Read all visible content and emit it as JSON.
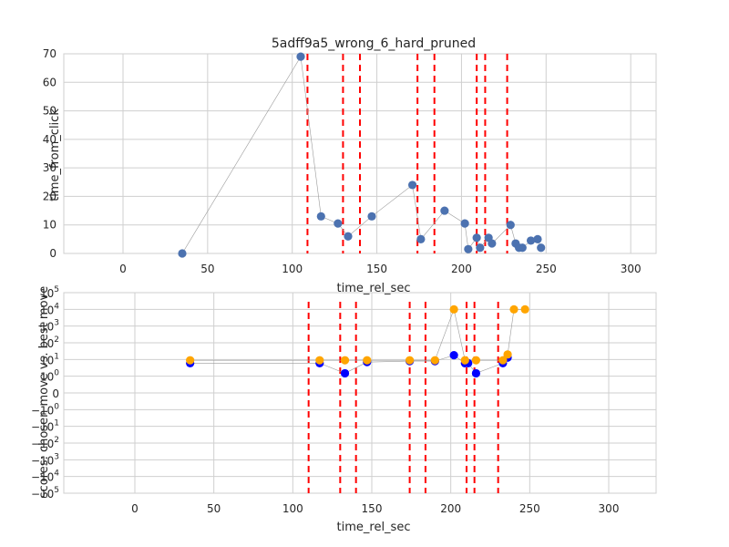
{
  "chart_data": [
    {
      "type": "scatter",
      "title": "5adff9a5_wrong_6_hard_pruned",
      "xlabel": "time_rel_sec",
      "ylabel": "time_from_click",
      "xlim": [
        -35,
        315
      ],
      "ylim": [
        0,
        70
      ],
      "xticks": [
        "0",
        "50",
        "100",
        "150",
        "200",
        "250",
        "300"
      ],
      "xtick_values": [
        0,
        50,
        100,
        150,
        200,
        250,
        300
      ],
      "yticks": [
        "0",
        "10",
        "20",
        "30",
        "40",
        "50",
        "60",
        "70"
      ],
      "ytick_values": [
        0,
        10,
        20,
        30,
        40,
        50,
        60,
        70
      ],
      "grid": true,
      "connect_points": true,
      "series": [
        {
          "color": "#4c72b0",
          "x": [
            35,
            105,
            117,
            127,
            133,
            147,
            171,
            176,
            190,
            202,
            204,
            209,
            211,
            216,
            218,
            229,
            232,
            234,
            236,
            241,
            245,
            247
          ],
          "y": [
            0,
            69,
            13,
            10.5,
            6,
            13,
            24,
            5,
            15,
            10.5,
            1.5,
            5.5,
            2,
            5.5,
            3.5,
            10,
            3.5,
            2,
            2,
            4.5,
            5,
            2
          ]
        }
      ],
      "vertical_lines": {
        "color": "#ff0000",
        "style": "dashed",
        "x": [
          109,
          130,
          140,
          174,
          184,
          209,
          214,
          227
        ]
      }
    },
    {
      "type": "scatter",
      "xlabel": "time_rel_sec",
      "ylabel": "scores: chosen move vs. best move",
      "yscale": "symlog",
      "xlim": [
        -45,
        330
      ],
      "xticks": [
        "0",
        "50",
        "100",
        "150",
        "200",
        "250",
        "300"
      ],
      "xtick_values": [
        0,
        50,
        100,
        150,
        200,
        250,
        300
      ],
      "yticks": [
        "10^5",
        "10^4",
        "10^3",
        "10^2",
        "10^1",
        "10^0",
        "0",
        "-10^0",
        "-10^1",
        "-10^2",
        "-10^3",
        "-10^4",
        "-10^5"
      ],
      "grid": true,
      "connect_points": true,
      "series": [
        {
          "color": "#0000ff",
          "x": [
            35,
            117,
            133,
            147,
            174,
            190,
            202,
            209,
            211,
            216,
            233,
            236
          ],
          "y": [
            6,
            6,
            1.5,
            7,
            8,
            8,
            18,
            6,
            6,
            1.5,
            6,
            13
          ]
        },
        {
          "color": "#ffa500",
          "x": [
            35,
            117,
            133,
            147,
            174,
            190,
            202,
            209,
            216,
            233,
            236,
            240,
            247
          ],
          "y": [
            9,
            9,
            9,
            9,
            9,
            9,
            10000,
            9,
            9,
            9,
            20,
            10000,
            10000
          ]
        }
      ],
      "vertical_lines": {
        "color": "#ff0000",
        "style": "dashed",
        "x": [
          110,
          130,
          140,
          174,
          184,
          210,
          215,
          230
        ]
      }
    }
  ]
}
